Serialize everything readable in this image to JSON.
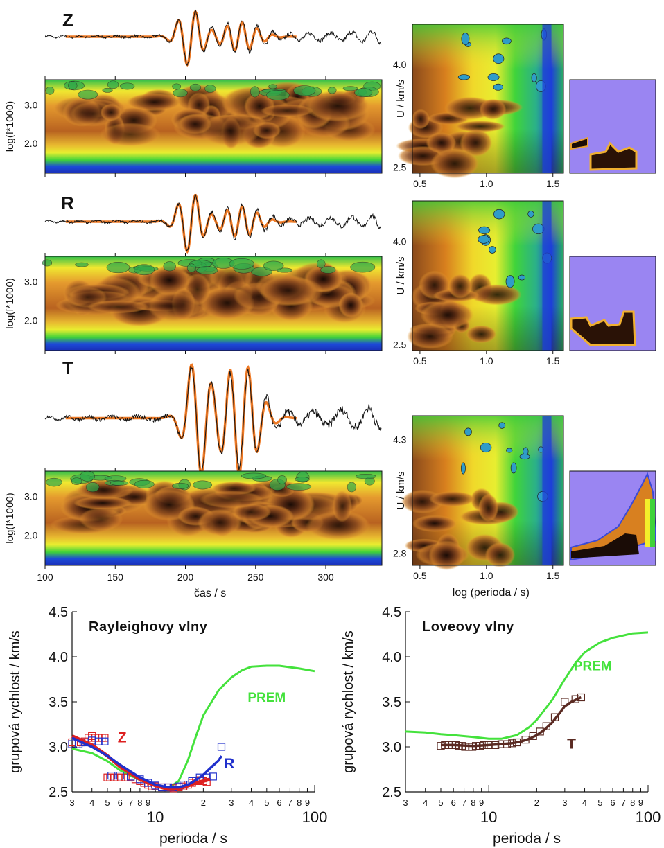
{
  "panels": {
    "components": [
      "Z",
      "R",
      "T"
    ],
    "spectrogram": {
      "ylabel": "log(f*1000)",
      "yticks": [
        "2.0",
        "3.0"
      ],
      "xticks": [
        "100",
        "150",
        "200",
        "250",
        "300"
      ],
      "xlabel": "čas / s"
    },
    "dispersion": {
      "ylabel": "U / km/s",
      "yticks": [
        [
          "2.5",
          "4.0"
        ],
        [
          "2.5",
          "4.0"
        ],
        [
          "2.8",
          "4.3"
        ]
      ],
      "xticks": [
        "0.5",
        "1.0",
        "1.5"
      ],
      "xlabel": "log (perioda / s)"
    }
  },
  "colors": {
    "dark": "#1a0c06",
    "brown": "#7a3a15",
    "orange": "#d8801e",
    "yellow": "#f4ee2a",
    "green": "#3fd23a",
    "blue": "#1e3fd8",
    "purple": "#9a85f2",
    "seismogram_fit": "#ee7a26",
    "prem": "#44e23c",
    "z_series": "#dd2020",
    "r_series": "#2030cc",
    "t_series": "#5a2a22"
  },
  "chart_data": [
    {
      "type": "scatter",
      "title": "Rayleighovy vlny",
      "xlabel": "perioda / s",
      "ylabel": "grupová rychlost / km/s",
      "xscale": "log",
      "xlim": [
        3,
        100
      ],
      "ylim": [
        2.5,
        4.5
      ],
      "xticks_major": [
        "10",
        "100"
      ],
      "xticks_minor": [
        "3",
        "4",
        "5",
        "6",
        "7",
        "8",
        "9",
        "2",
        "3",
        "4",
        "5",
        "6",
        "7",
        "8",
        "9"
      ],
      "yticks": [
        "2.5",
        "3.0",
        "3.5",
        "4.0",
        "4.5"
      ],
      "series": [
        {
          "name": "PREM",
          "kind": "line",
          "x": [
            3,
            4,
            5,
            6,
            8,
            10,
            12,
            14,
            16,
            18,
            20,
            25,
            30,
            35,
            40,
            50,
            60,
            80,
            100
          ],
          "y": [
            2.98,
            2.93,
            2.84,
            2.74,
            2.63,
            2.57,
            2.54,
            2.62,
            2.85,
            3.12,
            3.35,
            3.63,
            3.77,
            3.85,
            3.89,
            3.9,
            3.9,
            3.87,
            3.84
          ]
        },
        {
          "name": "Z",
          "kind": "points",
          "x": [
            3,
            3.2,
            3.4,
            3.6,
            3.8,
            4.0,
            4.2,
            4.4,
            4.6,
            4.8,
            5,
            5.2,
            5.5,
            5.8,
            6.1,
            6.5,
            7,
            7.5,
            8,
            8.5,
            9,
            9.5,
            10,
            11,
            12,
            13,
            14,
            15,
            16,
            17,
            18,
            19,
            20,
            21
          ],
          "y": [
            3.05,
            3.03,
            3.05,
            3.06,
            3.1,
            3.12,
            3.1,
            3.1,
            3.1,
            3.1,
            2.66,
            2.66,
            2.66,
            2.66,
            2.66,
            2.66,
            2.66,
            2.64,
            2.62,
            2.6,
            2.58,
            2.56,
            2.56,
            2.55,
            2.55,
            2.54,
            2.55,
            2.56,
            2.58,
            2.6,
            2.62,
            2.63,
            2.62,
            2.61
          ]
        },
        {
          "name": "R",
          "kind": "points",
          "x": [
            3,
            3.3,
            3.6,
            4,
            4.4,
            4.8,
            5.3,
            6,
            7,
            8,
            9,
            10,
            11,
            12,
            13,
            14,
            15,
            17,
            19,
            21,
            23,
            26
          ],
          "y": [
            3.03,
            3.03,
            3.05,
            3.07,
            3.06,
            3.06,
            2.68,
            2.68,
            2.67,
            2.64,
            2.6,
            2.57,
            2.55,
            2.55,
            2.55,
            2.56,
            2.58,
            2.62,
            2.66,
            2.66,
            2.67,
            3.0
          ]
        },
        {
          "name": "Z-fit",
          "kind": "line",
          "x": [
            3,
            4,
            5,
            6,
            8,
            10,
            12,
            13,
            15,
            18,
            20,
            22
          ],
          "y": [
            3.12,
            3.02,
            2.9,
            2.78,
            2.64,
            2.57,
            2.53,
            2.53,
            2.55,
            2.6,
            2.62,
            2.64
          ]
        },
        {
          "name": "R-fit",
          "kind": "line",
          "x": [
            3,
            4,
            5,
            6,
            8,
            10,
            12,
            14,
            16,
            18,
            20,
            22,
            25,
            26
          ],
          "y": [
            3.1,
            3.0,
            2.9,
            2.8,
            2.66,
            2.58,
            2.55,
            2.55,
            2.58,
            2.63,
            2.69,
            2.76,
            2.85,
            2.9
          ]
        }
      ],
      "labels": {
        "z": "Z",
        "r": "R",
        "prem": "PREM"
      }
    },
    {
      "type": "scatter",
      "title": "Loveovy vlny",
      "xlabel": "perioda / s",
      "ylabel": "grupová rychlost / km/s",
      "xscale": "log",
      "xlim": [
        3,
        100
      ],
      "ylim": [
        2.5,
        4.5
      ],
      "xticks_major": [
        "10",
        "100"
      ],
      "xticks_minor": [
        "3",
        "4",
        "5",
        "6",
        "7",
        "8",
        "9",
        "2",
        "3",
        "4",
        "5",
        "6",
        "7",
        "8",
        "9"
      ],
      "yticks": [
        "2.5",
        "3.0",
        "3.5",
        "4.0",
        "4.5"
      ],
      "series": [
        {
          "name": "PREM",
          "kind": "line",
          "x": [
            3,
            4,
            5,
            6,
            8,
            10,
            12,
            15,
            18,
            20,
            25,
            30,
            35,
            40,
            50,
            60,
            80,
            100
          ],
          "y": [
            3.17,
            3.16,
            3.14,
            3.13,
            3.11,
            3.09,
            3.09,
            3.13,
            3.22,
            3.3,
            3.52,
            3.75,
            3.93,
            4.05,
            4.16,
            4.21,
            4.26,
            4.27
          ]
        },
        {
          "name": "T",
          "kind": "points",
          "x": [
            5,
            5.3,
            5.6,
            5.9,
            6.2,
            6.5,
            6.8,
            7.1,
            7.5,
            7.9,
            8.3,
            8.8,
            9.3,
            10,
            11,
            12,
            13,
            14,
            15,
            17,
            19,
            21,
            23,
            26,
            30,
            35,
            38
          ],
          "y": [
            3.01,
            3.02,
            3.02,
            3.02,
            3.02,
            3.01,
            3.01,
            3.0,
            3.0,
            3.0,
            3.01,
            3.01,
            3.02,
            3.02,
            3.02,
            3.03,
            3.03,
            3.04,
            3.05,
            3.08,
            3.12,
            3.17,
            3.23,
            3.33,
            3.5,
            3.53,
            3.55
          ]
        },
        {
          "name": "T-fit",
          "kind": "line",
          "x": [
            5,
            6,
            8,
            10,
            12,
            14,
            16,
            18,
            20,
            22,
            25,
            28,
            30,
            33,
            38
          ],
          "y": [
            3.02,
            3.02,
            3.01,
            3.02,
            3.03,
            3.04,
            3.06,
            3.09,
            3.13,
            3.18,
            3.27,
            3.38,
            3.45,
            3.5,
            3.55
          ]
        }
      ],
      "labels": {
        "t": "T",
        "prem": "PREM"
      }
    }
  ]
}
